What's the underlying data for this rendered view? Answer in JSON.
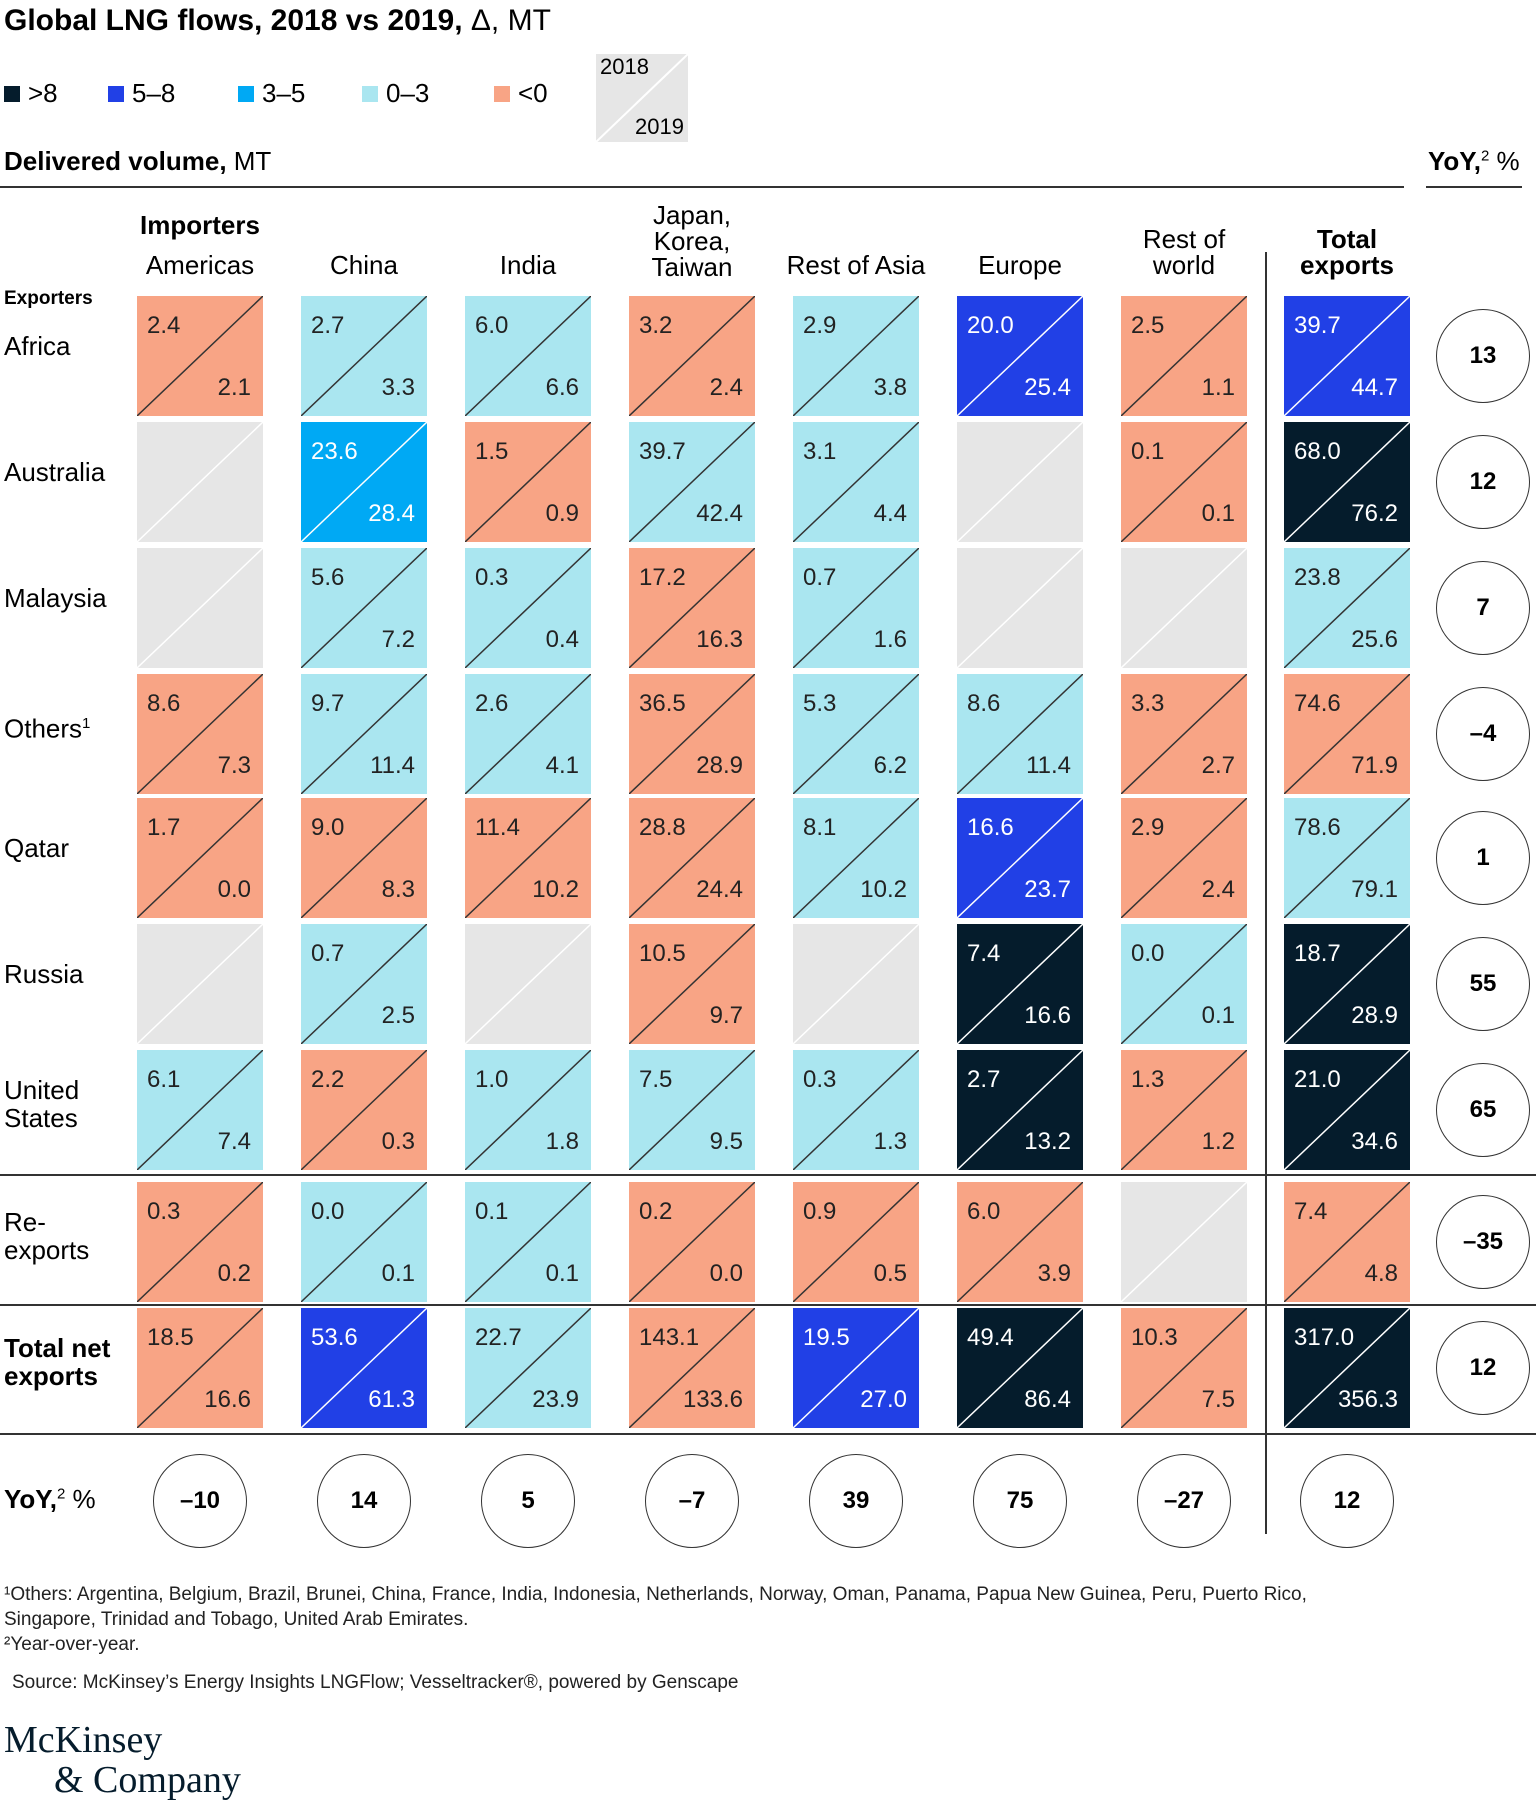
{
  "title_bold": "Global LNG flows, 2018 vs 2019,",
  "title_rest": " Δ, MT",
  "legend": [
    {
      "label": ">8",
      "color": "#051c2c"
    },
    {
      "label": "5–8",
      "color": "#2140e6"
    },
    {
      "label": "3–5",
      "color": "#00a9f4"
    },
    {
      "label": "0–3",
      "color": "#aae6f0"
    },
    {
      "label": "<0",
      "color": "#f8a485"
    }
  ],
  "legend_key": {
    "top": "2018",
    "bottom": "2019",
    "color": "#e6e6e6"
  },
  "section_head_bold": "Delivered volume,",
  "section_head_rest": " MT",
  "yoy_head_bold": "YoY,",
  "yoy_head_sup": "2",
  "yoy_head_rest": " %",
  "importers_label": "Importers",
  "exporters_label": "Exporters",
  "total_exports_label": "Total exports",
  "chart_data": {
    "type": "table",
    "columns": [
      "Americas",
      "China",
      "India",
      "Japan, Korea, Taiwan",
      "Rest of Asia",
      "Europe",
      "Rest of world",
      "Total exports"
    ],
    "rows": [
      {
        "name": "Africa",
        "cells": [
          {
            "v18": "2.4",
            "v19": "2.1",
            "cat": "<0"
          },
          {
            "v18": "2.7",
            "v19": "3.3",
            "cat": "0–3"
          },
          {
            "v18": "6.0",
            "v19": "6.6",
            "cat": "0–3"
          },
          {
            "v18": "3.2",
            "v19": "2.4",
            "cat": "<0"
          },
          {
            "v18": "2.9",
            "v19": "3.8",
            "cat": "0–3"
          },
          {
            "v18": "20.0",
            "v19": "25.4",
            "cat": "5–8"
          },
          {
            "v18": "2.5",
            "v19": "1.1",
            "cat": "<0"
          },
          {
            "v18": "39.7",
            "v19": "44.7",
            "cat": "5–8"
          }
        ],
        "yoy": "13"
      },
      {
        "name": "Australia",
        "cells": [
          {
            "v18": "",
            "v19": "",
            "cat": "none"
          },
          {
            "v18": "23.6",
            "v19": "28.4",
            "cat": "3–5"
          },
          {
            "v18": "1.5",
            "v19": "0.9",
            "cat": "<0"
          },
          {
            "v18": "39.7",
            "v19": "42.4",
            "cat": "0–3"
          },
          {
            "v18": "3.1",
            "v19": "4.4",
            "cat": "0–3"
          },
          {
            "v18": "",
            "v19": "",
            "cat": "none"
          },
          {
            "v18": "0.1",
            "v19": "0.1",
            "cat": "<0"
          },
          {
            "v18": "68.0",
            "v19": "76.2",
            "cat": ">8"
          }
        ],
        "yoy": "12"
      },
      {
        "name": "Malaysia",
        "cells": [
          {
            "v18": "",
            "v19": "",
            "cat": "none"
          },
          {
            "v18": "5.6",
            "v19": "7.2",
            "cat": "0–3"
          },
          {
            "v18": "0.3",
            "v19": "0.4",
            "cat": "0–3"
          },
          {
            "v18": "17.2",
            "v19": "16.3",
            "cat": "<0"
          },
          {
            "v18": "0.7",
            "v19": "1.6",
            "cat": "0–3"
          },
          {
            "v18": "",
            "v19": "",
            "cat": "none"
          },
          {
            "v18": "",
            "v19": "",
            "cat": "none"
          },
          {
            "v18": "23.8",
            "v19": "25.6",
            "cat": "0–3"
          }
        ],
        "yoy": "7"
      },
      {
        "name": "Others",
        "sup": "1",
        "cells": [
          {
            "v18": "8.6",
            "v19": "7.3",
            "cat": "<0"
          },
          {
            "v18": "9.7",
            "v19": "11.4",
            "cat": "0–3"
          },
          {
            "v18": "2.6",
            "v19": "4.1",
            "cat": "0–3"
          },
          {
            "v18": "36.5",
            "v19": "28.9",
            "cat": "<0"
          },
          {
            "v18": "5.3",
            "v19": "6.2",
            "cat": "0–3"
          },
          {
            "v18": "8.6",
            "v19": "11.4",
            "cat": "0–3"
          },
          {
            "v18": "3.3",
            "v19": "2.7",
            "cat": "<0"
          },
          {
            "v18": "74.6",
            "v19": "71.9",
            "cat": "<0"
          }
        ],
        "yoy": "–4"
      },
      {
        "name": "Qatar",
        "cells": [
          {
            "v18": "1.7",
            "v19": "0.0",
            "cat": "<0"
          },
          {
            "v18": "9.0",
            "v19": "8.3",
            "cat": "<0"
          },
          {
            "v18": "11.4",
            "v19": "10.2",
            "cat": "<0"
          },
          {
            "v18": "28.8",
            "v19": "24.4",
            "cat": "<0"
          },
          {
            "v18": "8.1",
            "v19": "10.2",
            "cat": "0–3"
          },
          {
            "v18": "16.6",
            "v19": "23.7",
            "cat": "5–8"
          },
          {
            "v18": "2.9",
            "v19": "2.4",
            "cat": "<0"
          },
          {
            "v18": "78.6",
            "v19": "79.1",
            "cat": "0–3"
          }
        ],
        "yoy": "1"
      },
      {
        "name": "Russia",
        "cells": [
          {
            "v18": "",
            "v19": "",
            "cat": "none"
          },
          {
            "v18": "0.7",
            "v19": "2.5",
            "cat": "0–3"
          },
          {
            "v18": "",
            "v19": "",
            "cat": "none"
          },
          {
            "v18": "10.5",
            "v19": "9.7",
            "cat": "<0"
          },
          {
            "v18": "",
            "v19": "",
            "cat": "none"
          },
          {
            "v18": "7.4",
            "v19": "16.6",
            "cat": ">8"
          },
          {
            "v18": "0.0",
            "v19": "0.1",
            "cat": "0–3"
          },
          {
            "v18": "18.7",
            "v19": "28.9",
            "cat": ">8"
          }
        ],
        "yoy": "55"
      },
      {
        "name": "United States",
        "cells": [
          {
            "v18": "6.1",
            "v19": "7.4",
            "cat": "0–3"
          },
          {
            "v18": "2.2",
            "v19": "0.3",
            "cat": "<0"
          },
          {
            "v18": "1.0",
            "v19": "1.8",
            "cat": "0–3"
          },
          {
            "v18": "7.5",
            "v19": "9.5",
            "cat": "0–3"
          },
          {
            "v18": "0.3",
            "v19": "1.3",
            "cat": "0–3"
          },
          {
            "v18": "2.7",
            "v19": "13.2",
            "cat": ">8"
          },
          {
            "v18": "1.3",
            "v19": "1.2",
            "cat": "<0"
          },
          {
            "v18": "21.0",
            "v19": "34.6",
            "cat": ">8"
          }
        ],
        "yoy": "65"
      },
      {
        "name": "Re-exports",
        "cells": [
          {
            "v18": "0.3",
            "v19": "0.2",
            "cat": "<0"
          },
          {
            "v18": "0.0",
            "v19": "0.1",
            "cat": "0–3"
          },
          {
            "v18": "0.1",
            "v19": "0.1",
            "cat": "0–3"
          },
          {
            "v18": "0.2",
            "v19": "0.0",
            "cat": "<0"
          },
          {
            "v18": "0.9",
            "v19": "0.5",
            "cat": "<0"
          },
          {
            "v18": "6.0",
            "v19": "3.9",
            "cat": "<0"
          },
          {
            "v18": "",
            "v19": "",
            "cat": "none"
          },
          {
            "v18": "7.4",
            "v19": "4.8",
            "cat": "<0"
          }
        ],
        "yoy": "–35"
      },
      {
        "name": "Total net exports",
        "bold": true,
        "cells": [
          {
            "v18": "18.5",
            "v19": "16.6",
            "cat": "<0"
          },
          {
            "v18": "53.6",
            "v19": "61.3",
            "cat": "5–8"
          },
          {
            "v18": "22.7",
            "v19": "23.9",
            "cat": "0–3"
          },
          {
            "v18": "143.1",
            "v19": "133.6",
            "cat": "<0"
          },
          {
            "v18": "19.5",
            "v19": "27.0",
            "cat": "5–8"
          },
          {
            "v18": "49.4",
            "v19": "86.4",
            "cat": ">8"
          },
          {
            "v18": "10.3",
            "v19": "7.5",
            "cat": "<0"
          },
          {
            "v18": "317.0",
            "v19": "356.3",
            "cat": ">8"
          }
        ],
        "yoy": "12"
      }
    ],
    "column_yoy": [
      "–10",
      "14",
      "5",
      "–7",
      "39",
      "75",
      "–27",
      "12"
    ],
    "category_colors": {
      ">8": "#051c2c",
      "5–8": "#2140e6",
      "3–5": "#00a9f4",
      "0–3": "#aae6f0",
      "<0": "#f8a485",
      "none": "#e6e6e6"
    }
  },
  "footnotes": [
    "¹Others: Argentina, Belgium, Brazil, Brunei, China, France, India, Indonesia, Netherlands, Norway, Oman, Panama, Papua New Guinea, Peru, Puerto Rico,",
    "  Singapore, Trinidad and Tobago, United Arab Emirates.",
    "²Year-over-year.",
    "Source: McKinsey’s Energy Insights LNGFlow; Vesseltracker®, powered by Genscape"
  ],
  "logo_line1": "McKinsey",
  "logo_line2": "& Company"
}
